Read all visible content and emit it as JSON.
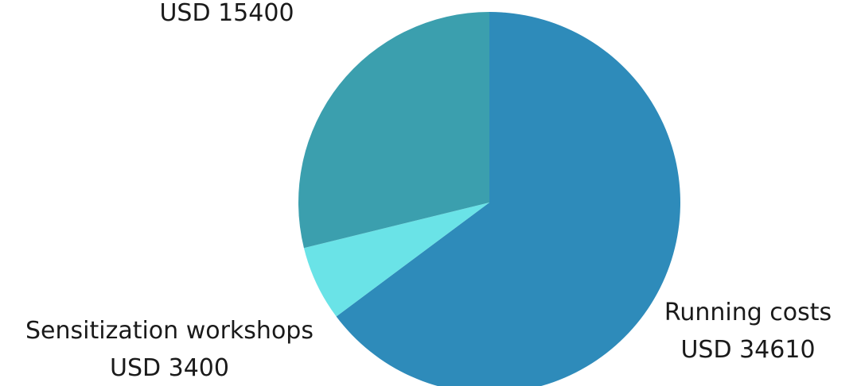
{
  "chart_data": {
    "type": "pie",
    "title": "",
    "slices": [
      {
        "name": "Running costs",
        "value": 34610,
        "value_label": "USD 34610",
        "color": "#2e8bba"
      },
      {
        "name": "Sensitization workshops",
        "value": 3400,
        "value_label": "USD 3400",
        "color": "#6ae3e7"
      },
      {
        "name": "",
        "value": 15400,
        "value_label": "USD 15400",
        "color": "#3b9fae"
      }
    ]
  }
}
